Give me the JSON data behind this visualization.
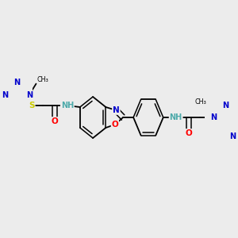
{
  "bg_color": "#ececec",
  "bond_color": "#000000",
  "atom_colors": {
    "N": "#0000cc",
    "O": "#ff0000",
    "S": "#cccc00",
    "NH": "#4daaaa",
    "C": "#000000"
  },
  "figsize": [
    3.0,
    3.0
  ],
  "dpi": 100,
  "xlim": [
    0.0,
    3.0
  ],
  "ylim": [
    0.0,
    3.0
  ]
}
